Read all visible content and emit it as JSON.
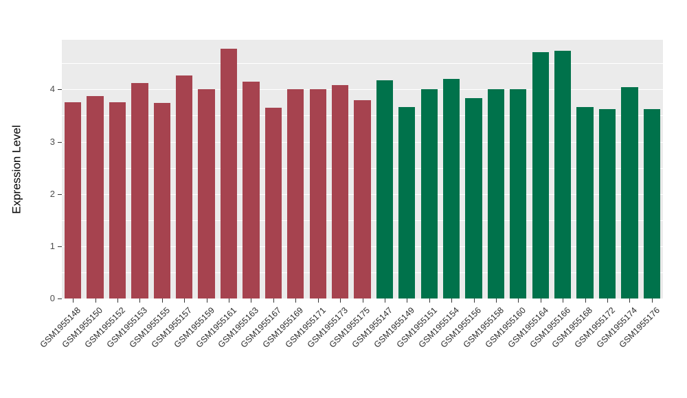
{
  "chart_data": {
    "type": "bar",
    "title": "",
    "xlabel": "",
    "ylabel": "Expression Level",
    "ylim": [
      0,
      4.95
    ],
    "yticks": [
      0,
      1,
      2,
      3,
      4
    ],
    "minor_tick_step": 0.5,
    "grid": true,
    "legend_position": "none",
    "panel_background": "#EBEBEB",
    "grid_color": "#FFFFFF",
    "bar_width_ratio": 0.75,
    "groups": [
      {
        "name": "group-red",
        "color": "#A6434F"
      },
      {
        "name": "group-green",
        "color": "#00724B"
      }
    ],
    "bars": [
      {
        "label": "GSM1955148",
        "value": 3.76,
        "group": 0
      },
      {
        "label": "GSM1955150",
        "value": 3.87,
        "group": 0
      },
      {
        "label": "GSM1955152",
        "value": 3.76,
        "group": 0
      },
      {
        "label": "GSM1955153",
        "value": 4.12,
        "group": 0
      },
      {
        "label": "GSM1955155",
        "value": 3.74,
        "group": 0
      },
      {
        "label": "GSM1955157",
        "value": 4.27,
        "group": 0
      },
      {
        "label": "GSM1955159",
        "value": 4.01,
        "group": 0
      },
      {
        "label": "GSM1955161",
        "value": 4.78,
        "group": 0
      },
      {
        "label": "GSM1955163",
        "value": 4.15,
        "group": 0
      },
      {
        "label": "GSM1955167",
        "value": 3.65,
        "group": 0
      },
      {
        "label": "GSM1955169",
        "value": 4.0,
        "group": 0
      },
      {
        "label": "GSM1955171",
        "value": 4.0,
        "group": 0
      },
      {
        "label": "GSM1955173",
        "value": 4.08,
        "group": 0
      },
      {
        "label": "GSM1955175",
        "value": 3.8,
        "group": 0
      },
      {
        "label": "GSM1955147",
        "value": 4.17,
        "group": 1
      },
      {
        "label": "GSM1955149",
        "value": 3.66,
        "group": 1
      },
      {
        "label": "GSM1955151",
        "value": 4.01,
        "group": 1
      },
      {
        "label": "GSM1955154",
        "value": 4.2,
        "group": 1
      },
      {
        "label": "GSM1955156",
        "value": 3.84,
        "group": 1
      },
      {
        "label": "GSM1955158",
        "value": 4.0,
        "group": 1
      },
      {
        "label": "GSM1955160",
        "value": 4.01,
        "group": 1
      },
      {
        "label": "GSM1955164",
        "value": 4.71,
        "group": 1
      },
      {
        "label": "GSM1955166",
        "value": 4.74,
        "group": 1
      },
      {
        "label": "GSM1955168",
        "value": 3.66,
        "group": 1
      },
      {
        "label": "GSM1955172",
        "value": 3.62,
        "group": 1
      },
      {
        "label": "GSM1955174",
        "value": 4.05,
        "group": 1
      },
      {
        "label": "GSM1955176",
        "value": 3.63,
        "group": 1
      }
    ]
  }
}
